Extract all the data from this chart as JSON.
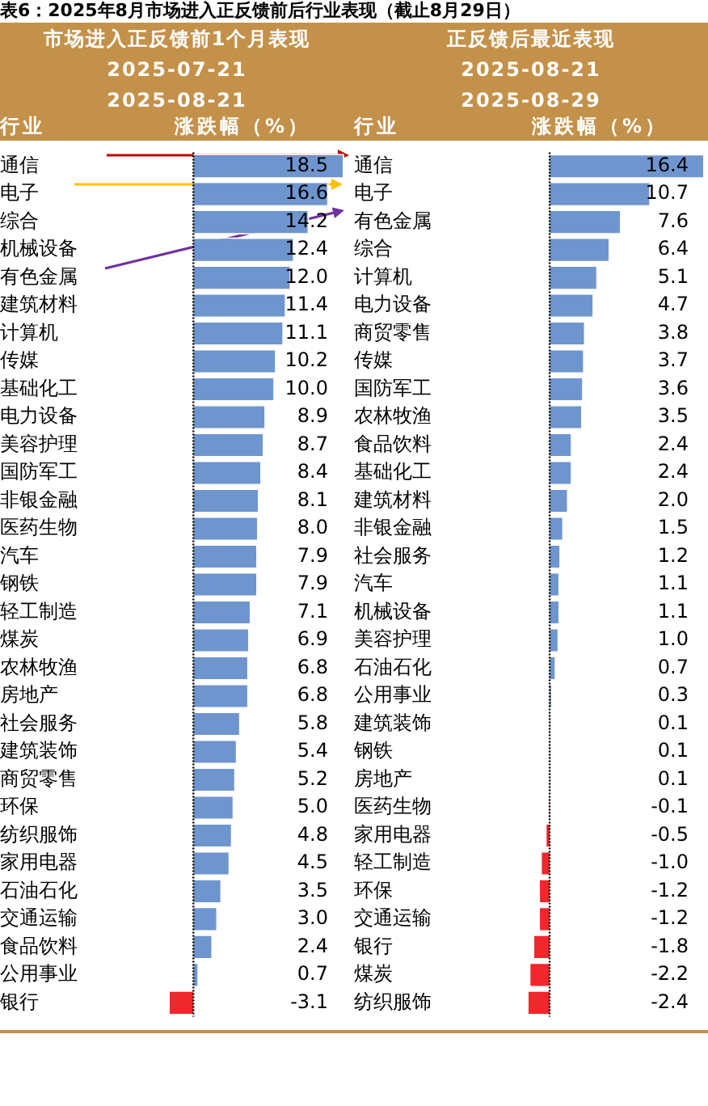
{
  "chart_data": [
    {
      "type": "bar",
      "orientation": "horizontal",
      "title": "市场进入正反馈前1个月表现",
      "subtitle": "2025-07-21\n2025-08-21",
      "ylabel": "行业",
      "xlabel": "涨跌幅（%）",
      "ref_lines": [
        {
          "axis": "x",
          "value": 0,
          "color": "#000000",
          "line_style": "dotted"
        }
      ],
      "annotations": [
        "表6：2025年8月市场进入正反馈前后行业表现（截止8月29日）"
      ],
      "categories": [
        "通信",
        "电子",
        "综合",
        "机械设备",
        "有色金属",
        "建筑材料",
        "计算机",
        "传媒",
        "基础化工",
        "电力设备",
        "美容护理",
        "国防军工",
        "非银金融",
        "医药生物",
        "汽车",
        "钢铁",
        "轻工制造",
        "煤炭",
        "农林牧渔",
        "房地产",
        "社会服务",
        "建筑装饰",
        "商贸零售",
        "环保",
        "纺织服饰",
        "家用电器",
        "石油石化",
        "交通运输",
        "食品饮料",
        "公用事业",
        "银行"
      ],
      "values": [
        18.5,
        16.6,
        14.2,
        12.4,
        12.0,
        11.4,
        11.1,
        10.2,
        10.0,
        8.9,
        8.7,
        8.4,
        8.1,
        8.0,
        7.9,
        7.9,
        7.1,
        6.9,
        6.8,
        6.8,
        5.8,
        5.4,
        5.2,
        5.0,
        4.8,
        4.5,
        3.5,
        3.0,
        2.4,
        0.7,
        -3.1
      ],
      "value_labels": [
        "18.5",
        "16.6",
        "14.2",
        "12.4",
        "12.0",
        "11.4",
        "11.1",
        "10.2",
        "10.0",
        "8.9",
        "8.7",
        "8.4",
        "8.1",
        "8.0",
        "7.9",
        "7.9",
        "7.1",
        "6.9",
        "6.8",
        "6.8",
        "5.8",
        "5.4",
        "5.2",
        "5.0",
        "4.8",
        "4.5",
        "3.5",
        "3.0",
        "2.4",
        "0.7",
        "-3.1"
      ],
      "colors": [
        "#6f95cf",
        "#6f95cf",
        "#6f95cf",
        "#6f95cf",
        "#6f95cf",
        "#6f95cf",
        "#6f95cf",
        "#6f95cf",
        "#6f95cf",
        "#6f95cf",
        "#6f95cf",
        "#6f95cf",
        "#6f95cf",
        "#6f95cf",
        "#6f95cf",
        "#6f95cf",
        "#6f95cf",
        "#6f95cf",
        "#6f95cf",
        "#6f95cf",
        "#6f95cf",
        "#6f95cf",
        "#6f95cf",
        "#6f95cf",
        "#6f95cf",
        "#6f95cf",
        "#6f95cf",
        "#6f95cf",
        "#6f95cf",
        "#6f95cf",
        "#f0282d"
      ]
    },
    {
      "type": "bar",
      "orientation": "horizontal",
      "title": "正反馈后最近表现",
      "ref_lines": [
        {
          "axis": "x",
          "value": 0,
          "color": "#000000",
          "line_style": "dotted"
        }
      ],
      "subtitle": "2025-08-21\n2025-08-29",
      "ylabel": "行业",
      "xlabel": "涨跌幅（%）",
      "categories": [
        "通信",
        "电子",
        "有色金属",
        "综合",
        "计算机",
        "电力设备",
        "商贸零售",
        "传媒",
        "国防军工",
        "农林牧渔",
        "食品饮料",
        "基础化工",
        "建筑材料",
        "非银金融",
        "社会服务",
        "汽车",
        "机械设备",
        "美容护理",
        "石油石化",
        "公用事业",
        "建筑装饰",
        "钢铁",
        "房地产",
        "医药生物",
        "家用电器",
        "轻工制造",
        "环保",
        "交通运输",
        "银行",
        "煤炭",
        "纺织服饰"
      ],
      "values": [
        16.4,
        10.7,
        7.6,
        6.4,
        5.1,
        4.7,
        3.8,
        3.7,
        3.6,
        3.5,
        2.4,
        2.4,
        2.0,
        1.5,
        1.2,
        1.1,
        1.1,
        1.0,
        0.7,
        0.3,
        0.1,
        0.1,
        0.1,
        -0.1,
        -0.5,
        -1.0,
        -1.2,
        -1.2,
        -1.8,
        -2.2,
        -2.4
      ],
      "value_labels": [
        "16.4",
        "10.7",
        "7.6",
        "6.4",
        "5.1",
        "4.7",
        "3.8",
        "3.7",
        "3.6",
        "3.5",
        "2.4",
        "2.4",
        "2.0",
        "1.5",
        "1.2",
        "1.1",
        "1.1",
        "1.0",
        "0.7",
        "0.3",
        "0.1",
        "0.1",
        "0.1",
        "-0.1",
        "-0.5",
        "-1.0",
        "-1.2",
        "-1.2",
        "-1.8",
        "-2.2",
        "-2.4"
      ],
      "colors": [
        "#6f95cf",
        "#6f95cf",
        "#6f95cf",
        "#6f95cf",
        "#6f95cf",
        "#6f95cf",
        "#6f95cf",
        "#6f95cf",
        "#6f95cf",
        "#6f95cf",
        "#6f95cf",
        "#6f95cf",
        "#6f95cf",
        "#6f95cf",
        "#6f95cf",
        "#6f95cf",
        "#6f95cf",
        "#6f95cf",
        "#6f95cf",
        "#6f95cf",
        "#6f95cf",
        "#6f95cf",
        "#6f95cf",
        "#f0282d",
        "#f0282d",
        "#f0282d",
        "#f0282d",
        "#f0282d",
        "#f0282d",
        "#f0282d",
        "#f0282d"
      ]
    }
  ]
}
